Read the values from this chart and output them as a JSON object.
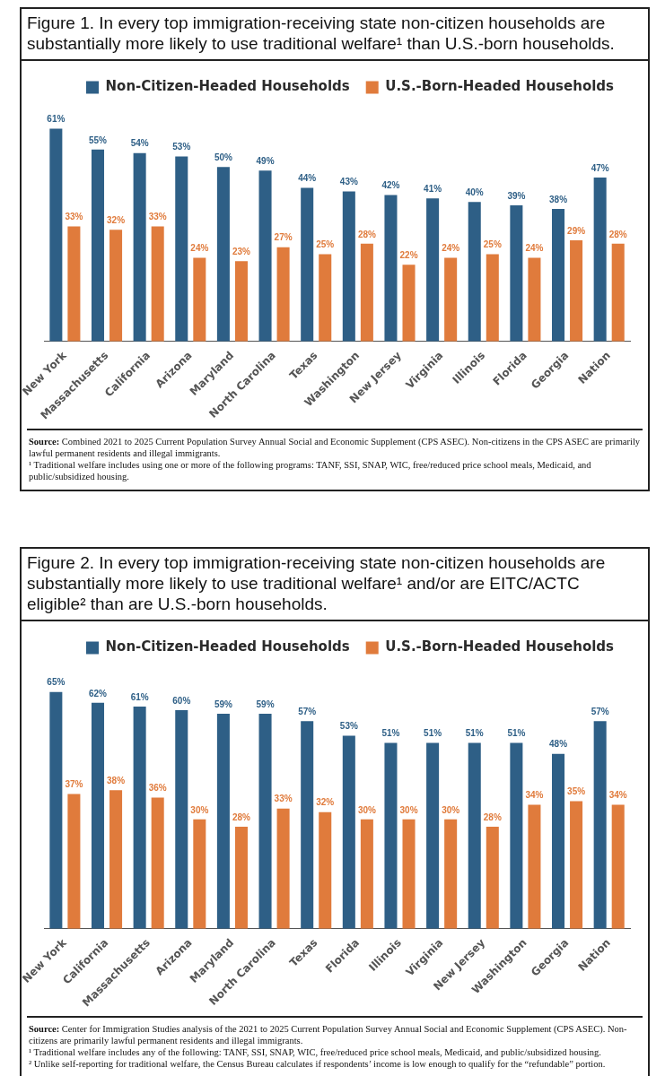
{
  "chart_data": [
    {
      "type": "bar",
      "title": "Figure 1. In every top immigration-receiving state non-citizen households are substantially more likely to use traditional welfare¹ than U.S.-born households.",
      "categories": [
        "New York",
        "Massachusetts",
        "California",
        "Arizona",
        "Maryland",
        "North Carolina",
        "Texas",
        "Washington",
        "New Jersey",
        "Virginia",
        "Illinois",
        "Florida",
        "Georgia",
        "Nation"
      ],
      "series": [
        {
          "name": "Non-Citizen-Headed Households",
          "color": "#2e5f86",
          "values": [
            61,
            55,
            54,
            53,
            50,
            49,
            44,
            43,
            42,
            41,
            40,
            39,
            38,
            47
          ],
          "value_labels": [
            "61%",
            "55%",
            "54%",
            "53%",
            "50%",
            "49%",
            "44%",
            "43%",
            "42%",
            "41%",
            "40%",
            "39%",
            "38%",
            "47%"
          ]
        },
        {
          "name": "U.S.-Born-Headed Households",
          "color": "#e07b3c",
          "values": [
            33,
            32,
            33,
            24,
            23,
            27,
            25,
            28,
            22,
            24,
            25,
            24,
            29,
            28
          ],
          "value_labels": [
            "33%",
            "32%",
            "33%",
            "24%",
            "23%",
            "27%",
            "25%",
            "28%",
            "22%",
            "24%",
            "25%",
            "24%",
            "29%",
            "28%"
          ]
        }
      ],
      "legend": "top right",
      "tick_labels": "x",
      "annotations": [
        "Source: Combined 2021 to 2025 Current Population Survey Annual Social and Economic Supplement (CPS ASEC). Non-citizens in the CPS ASEC are primarily lawful permanent residents and illegal immigrants.",
        "¹ Traditional welfare includes using one or more of the following programs:  TANF, SSI, SNAP, WIC, free/reduced price school meals, Medicaid, and public/subsidized housing."
      ]
    },
    {
      "type": "bar",
      "title": "Figure 2. In every top immigration-receiving state non-citizen households are substantially more likely to use traditional welfare¹ and/or are EITC/ACTC eligible² than are U.S.-born households.",
      "categories": [
        "New York",
        "California",
        "Massachusetts",
        "Arizona",
        "Maryland",
        "North Carolina",
        "Texas",
        "Florida",
        "Illinois",
        "Virginia",
        "New Jersey",
        "Washington",
        "Georgia",
        "Nation"
      ],
      "series": [
        {
          "name": "Non-Citizen-Headed Households",
          "color": "#2e5f86",
          "values": [
            65,
            62,
            61,
            60,
            59,
            59,
            57,
            53,
            51,
            51,
            51,
            51,
            48,
            57
          ],
          "value_labels": [
            "65%",
            "62%",
            "61%",
            "60%",
            "59%",
            "59%",
            "57%",
            "53%",
            "51%",
            "51%",
            "51%",
            "51%",
            "48%",
            "57%"
          ]
        },
        {
          "name": "U.S.-Born-Headed Households",
          "color": "#e07b3c",
          "values": [
            37,
            38,
            36,
            30,
            28,
            33,
            32,
            30,
            30,
            30,
            28,
            34,
            35,
            34
          ],
          "value_labels": [
            "37%",
            "38%",
            "36%",
            "30%",
            "28%",
            "33%",
            "32%",
            "30%",
            "30%",
            "30%",
            "28%",
            "34%",
            "35%",
            "34%"
          ]
        }
      ],
      "legend": "top right",
      "tick_labels": "x",
      "annotations": [
        "Source: Center for Immigration Studies analysis of the 2021 to 2025 Current Population Survey Annual Social and Economic Supplement (CPS ASEC). Non-citizens are primarily lawful permanent residents and illegal immigrants.",
        "¹ Traditional welfare includes any of the following: TANF, SSI, SNAP, WIC, free/reduced price school meals, Medicaid, and public/subsidized housing.",
        "² Unlike self-reporting for traditional welfare, the Census Bureau calculates if respondents’ income is low enough to qualify for the “refundable” portion."
      ]
    }
  ]
}
